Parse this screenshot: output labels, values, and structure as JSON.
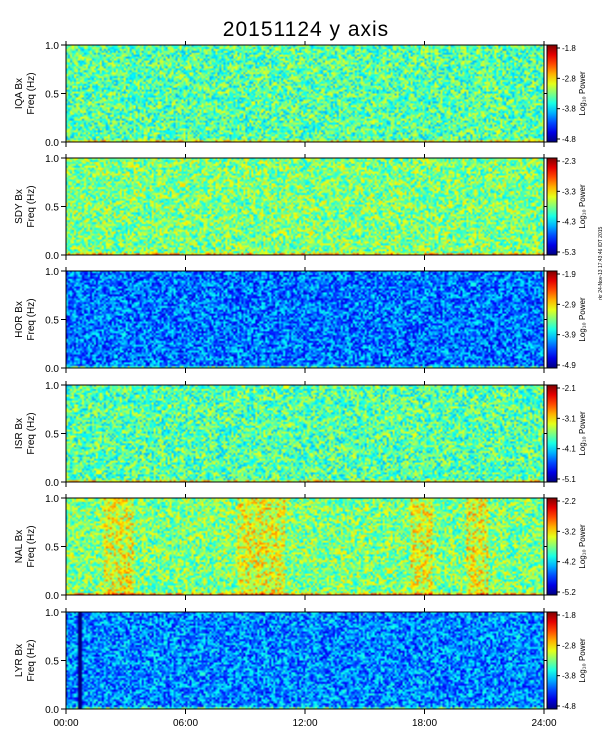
{
  "title": "20151124 y axis",
  "stamp": "rkr 24-Nov-13 17:43:46 IDT 2015",
  "chart_data": {
    "type": "heatmap",
    "title": "20151124 y axis",
    "x_axis": {
      "range": [
        "00:00",
        "24:00"
      ],
      "ticks": [
        "00:00",
        "06:00",
        "12:00",
        "18:00",
        "24:00"
      ]
    },
    "y_axis": {
      "label": "Freq (Hz)",
      "range": [
        0.0,
        1.0
      ],
      "ticks": [
        "0.0",
        "0.5",
        "1.0"
      ]
    },
    "colorbar_label": "Log₁₀ Power",
    "panels": [
      {
        "station": "IQA Bx",
        "colorbar_ticks": [
          "-1.8",
          "-2.8",
          "-3.8",
          "-4.8"
        ],
        "base_level": 0.46
      },
      {
        "station": "SDY Bx",
        "colorbar_ticks": [
          "-2.3",
          "-3.3",
          "-4.3",
          "-5.3"
        ],
        "base_level": 0.5
      },
      {
        "station": "HOR Bx",
        "colorbar_ticks": [
          "-1.9",
          "-2.9",
          "-3.9",
          "-4.9"
        ],
        "base_level": 0.24
      },
      {
        "station": "ISR Bx",
        "colorbar_ticks": [
          "-2.1",
          "-3.1",
          "-4.1",
          "-5.1"
        ],
        "base_level": 0.46
      },
      {
        "station": "NAL Bx",
        "colorbar_ticks": [
          "-2.2",
          "-3.2",
          "-4.2",
          "-5.2"
        ],
        "base_level": 0.5
      },
      {
        "station": "LYR Bx",
        "colorbar_ticks": [
          "-1.8",
          "-2.8",
          "-3.8",
          "-4.8"
        ],
        "base_level": 0.26
      }
    ]
  }
}
